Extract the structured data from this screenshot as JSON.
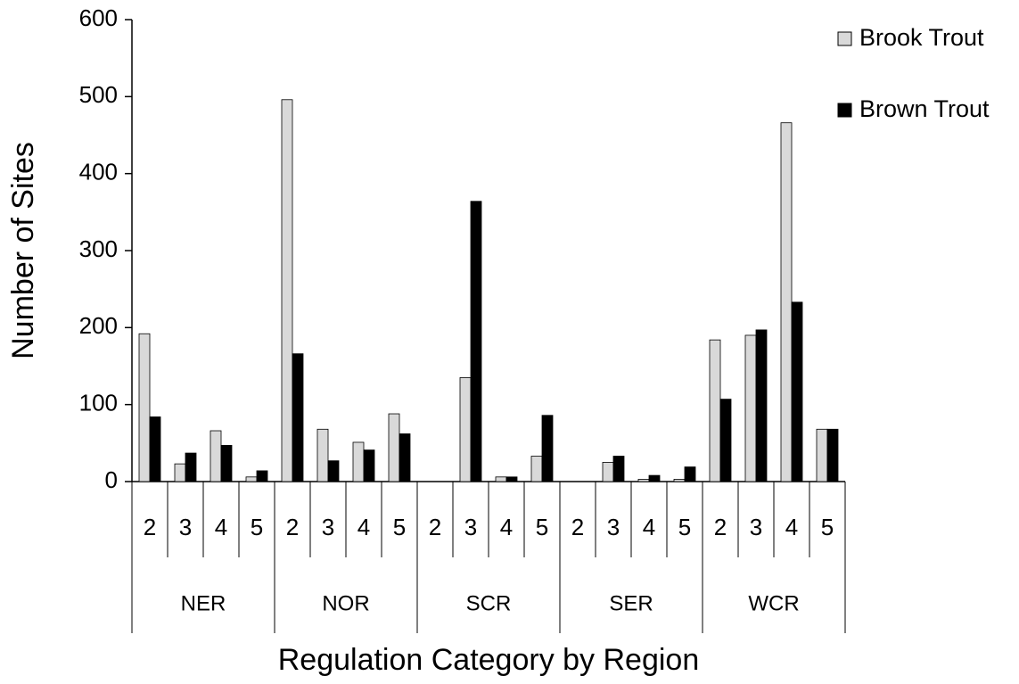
{
  "chart_data": {
    "type": "bar",
    "x_label": "Regulation Category by Region",
    "y_label": "Number of Sites",
    "groups": [
      {
        "label": "NER",
        "categories": [
          "2",
          "3",
          "4",
          "5"
        ]
      },
      {
        "label": "NOR",
        "categories": [
          "2",
          "3",
          "4",
          "5"
        ]
      },
      {
        "label": "SCR",
        "categories": [
          "2",
          "3",
          "4",
          "5"
        ]
      },
      {
        "label": "SER",
        "categories": [
          "2",
          "3",
          "4",
          "5"
        ]
      },
      {
        "label": "WCR",
        "categories": [
          "2",
          "3",
          "4",
          "5"
        ]
      }
    ],
    "series": [
      {
        "name": "Brook Trout",
        "color": "#d9d9d9",
        "values": [
          192,
          23,
          66,
          6,
          496,
          68,
          51,
          88,
          0,
          135,
          6,
          33,
          0,
          25,
          3,
          3,
          184,
          190,
          466,
          68
        ]
      },
      {
        "name": "Brown Trout",
        "color": "#000000",
        "values": [
          84,
          37,
          47,
          14,
          166,
          27,
          41,
          62,
          0,
          364,
          6,
          86,
          0,
          33,
          8,
          19,
          107,
          197,
          233,
          68
        ]
      }
    ],
    "ylim": [
      0,
      600
    ],
    "yticks": [
      0,
      100,
      200,
      300,
      400,
      500,
      600
    ],
    "grid": false,
    "legend": "top-right"
  }
}
